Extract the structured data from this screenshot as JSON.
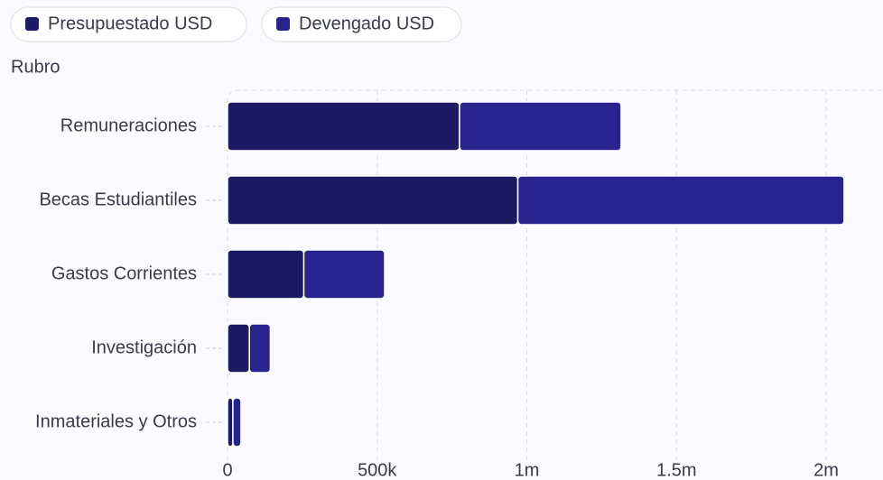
{
  "chart_data": {
    "type": "bar",
    "orientation": "horizontal",
    "stacked": true,
    "y_label": "Rubro",
    "categories": [
      "Remuneraciones",
      "Becas Estudiantiles",
      "Gastos Corrientes",
      "Investigación",
      "Inmateriales y Otros"
    ],
    "series": [
      {
        "name": "Presupuestado USD",
        "color": "#1c1a63",
        "values": [
          775000,
          970000,
          255000,
          73000,
          18000
        ]
      },
      {
        "name": "Devengado USD",
        "color": "#27238f",
        "values": [
          540000,
          1090000,
          270000,
          70000,
          27000
        ]
      }
    ],
    "xlim": [
      0,
      2190000
    ],
    "xticks": [
      0,
      {
        "value": 500000,
        "label": "500k"
      },
      {
        "value": 1000000,
        "label": "1m"
      },
      {
        "value": 1500000,
        "label": "1.5m"
      },
      {
        "value": 2000000,
        "label": "2m"
      }
    ],
    "grid": true,
    "legend": "top"
  }
}
